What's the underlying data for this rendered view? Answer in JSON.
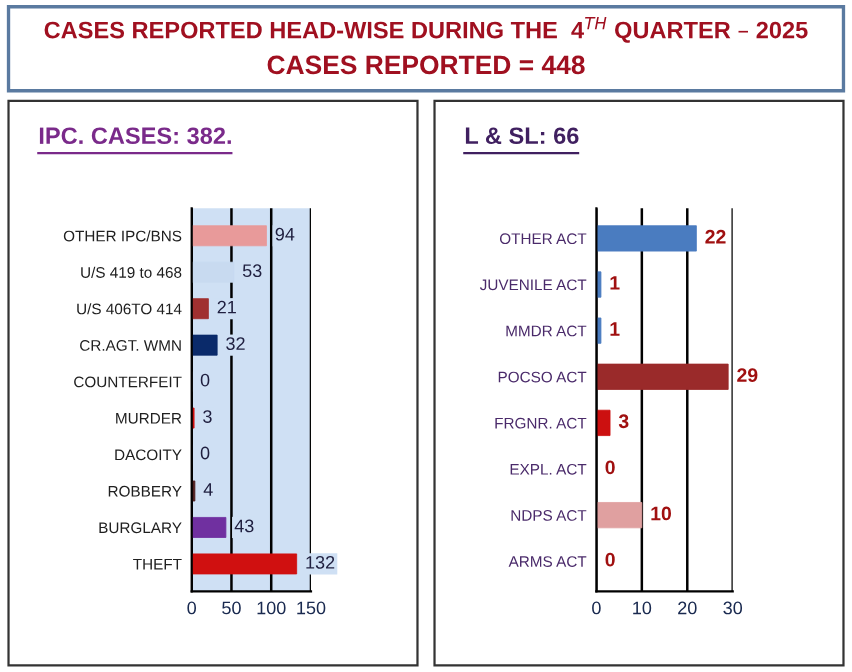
{
  "chart_data": [
    {
      "type": "other",
      "title": "CASES REPORTED HEAD-WISE DURING THE  4$^{TH}$ QUARTER – 2025",
      "subtitle": "CASES REPORTED = 448"
    },
    {
      "type": "bar",
      "orientation": "horizontal",
      "title": "IPC. CASES: 382.",
      "categories": [
        "OTHER IPC/BNS",
        "U/S 419 to 468",
        "U/S 406TO 414",
        "CR.AGT. WMN",
        "COUNTERFEIT",
        "MURDER",
        "DACOITY",
        "ROBBERY",
        "BURGLARY",
        "THEFT"
      ],
      "values": [
        94,
        53,
        21,
        32,
        0,
        3,
        0,
        4,
        43,
        132
      ],
      "colors": [
        "#e89a9a",
        "#c8daf0",
        "#a03030",
        "#0a2a6a",
        "#a0a8b8",
        "#d01010",
        "#404060",
        "#502020",
        "#7030a0",
        "#d01010"
      ],
      "xlim": [
        0,
        150
      ],
      "xticks": [
        0,
        50,
        100,
        150
      ],
      "grid": "x",
      "data_labels": true
    },
    {
      "type": "bar",
      "orientation": "horizontal",
      "title": "L & SL: 66",
      "categories": [
        "OTHER ACT",
        "JUVENILE ACT",
        "MMDR ACT",
        "POCSO ACT",
        "FRGNR. ACT",
        "EXPL. ACT",
        "NDPS ACT",
        "ARMS ACT"
      ],
      "values": [
        22,
        1,
        1,
        29,
        3,
        0,
        10,
        0
      ],
      "colors": [
        "#4a7cc0",
        "#4a7cc0",
        "#4a7cc0",
        "#9a2a2a",
        "#cc1010",
        "#3a6aa8",
        "#e0a0a0",
        "#cc1010"
      ],
      "xlim": [
        0,
        30
      ],
      "xticks": [
        0,
        10,
        20,
        30
      ],
      "grid": "x",
      "data_labels": true
    }
  ]
}
